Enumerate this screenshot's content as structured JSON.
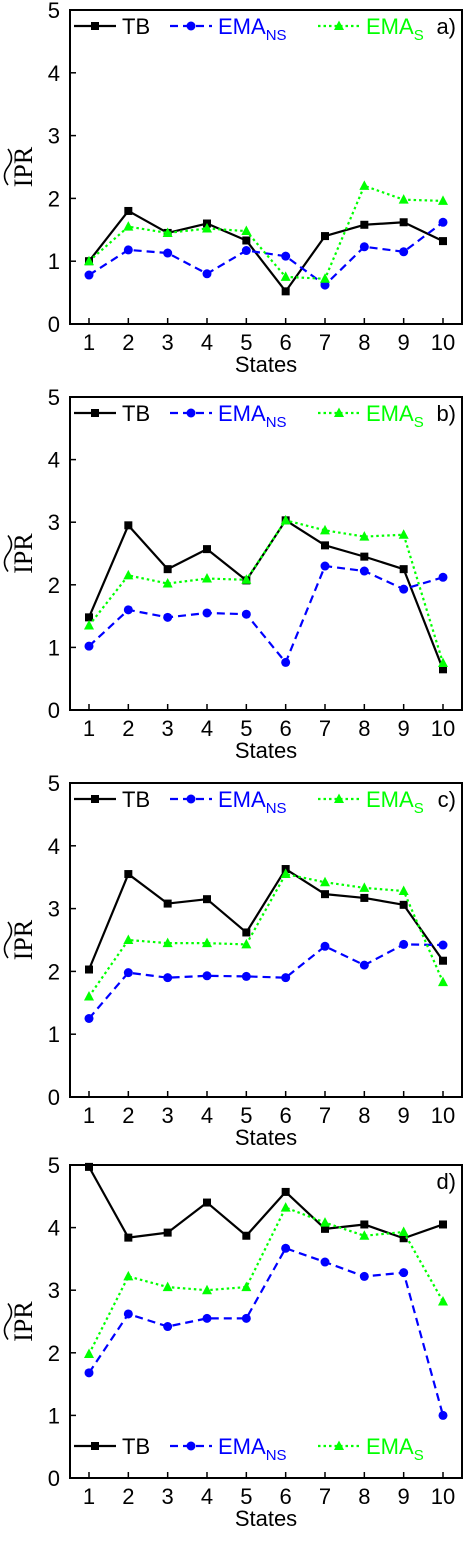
{
  "chart_data": [
    {
      "type": "line",
      "panel_label": "a)",
      "xlabel": "States",
      "ylabel": "IPR",
      "categories": [
        "1",
        "2",
        "3",
        "4",
        "5",
        "6",
        "7",
        "8",
        "9",
        "10"
      ],
      "ylim": [
        0,
        5
      ],
      "yticks": [
        "0",
        "1",
        "2",
        "3",
        "4",
        "5"
      ],
      "legend_position": "top",
      "series": [
        {
          "name": "TB",
          "color": "#000000",
          "marker": "square",
          "dash": "solid",
          "values": [
            1.0,
            1.8,
            1.45,
            1.6,
            1.33,
            0.52,
            1.4,
            1.58,
            1.62,
            1.32
          ]
        },
        {
          "name": "EMA_NS",
          "color": "#0000ff",
          "marker": "circle",
          "dash": "dashed",
          "values": [
            0.78,
            1.18,
            1.13,
            0.8,
            1.17,
            1.08,
            0.62,
            1.23,
            1.15,
            1.62
          ]
        },
        {
          "name": "EMA_S",
          "color": "#00ff00",
          "marker": "triangle",
          "dash": "dotted",
          "values": [
            1.0,
            1.55,
            1.45,
            1.52,
            1.48,
            0.75,
            0.72,
            2.2,
            1.98,
            1.96
          ]
        }
      ]
    },
    {
      "type": "line",
      "panel_label": "b)",
      "xlabel": "States",
      "ylabel": "IPR",
      "categories": [
        "1",
        "2",
        "3",
        "4",
        "5",
        "6",
        "7",
        "8",
        "9",
        "10"
      ],
      "ylim": [
        0,
        5
      ],
      "yticks": [
        "0",
        "1",
        "2",
        "3",
        "4",
        "5"
      ],
      "legend_position": "top",
      "series": [
        {
          "name": "TB",
          "color": "#000000",
          "marker": "square",
          "dash": "solid",
          "values": [
            1.48,
            2.95,
            2.25,
            2.57,
            2.07,
            3.03,
            2.63,
            2.45,
            2.25,
            0.65
          ]
        },
        {
          "name": "EMA_NS",
          "color": "#0000ff",
          "marker": "circle",
          "dash": "dashed",
          "values": [
            1.02,
            1.6,
            1.48,
            1.55,
            1.53,
            0.76,
            2.3,
            2.22,
            1.93,
            2.12
          ]
        },
        {
          "name": "EMA_S",
          "color": "#00ff00",
          "marker": "triangle",
          "dash": "dotted",
          "values": [
            1.35,
            2.15,
            2.02,
            2.1,
            2.08,
            3.03,
            2.87,
            2.77,
            2.8,
            0.75
          ]
        }
      ]
    },
    {
      "type": "line",
      "panel_label": "c)",
      "xlabel": "States",
      "ylabel": "IPR",
      "categories": [
        "1",
        "2",
        "3",
        "4",
        "5",
        "6",
        "7",
        "8",
        "9",
        "10"
      ],
      "ylim": [
        0,
        5
      ],
      "yticks": [
        "0",
        "1",
        "2",
        "3",
        "4",
        "5"
      ],
      "legend_position": "top",
      "series": [
        {
          "name": "TB",
          "color": "#000000",
          "marker": "square",
          "dash": "solid",
          "values": [
            2.03,
            3.55,
            3.08,
            3.15,
            2.62,
            3.63,
            3.23,
            3.17,
            3.06,
            2.17
          ]
        },
        {
          "name": "EMA_NS",
          "color": "#0000ff",
          "marker": "circle",
          "dash": "dashed",
          "values": [
            1.25,
            1.98,
            1.9,
            1.93,
            1.92,
            1.9,
            2.4,
            2.1,
            2.43,
            2.42
          ]
        },
        {
          "name": "EMA_S",
          "color": "#00ff00",
          "marker": "triangle",
          "dash": "dotted",
          "values": [
            1.6,
            2.5,
            2.45,
            2.45,
            2.43,
            3.55,
            3.42,
            3.33,
            3.28,
            1.83
          ]
        }
      ]
    },
    {
      "type": "line",
      "panel_label": "d)",
      "xlabel": "States",
      "ylabel": "IPR",
      "categories": [
        "1",
        "2",
        "3",
        "4",
        "5",
        "6",
        "7",
        "8",
        "9",
        "10"
      ],
      "ylim": [
        0,
        5
      ],
      "yticks": [
        "0",
        "1",
        "2",
        "3",
        "4",
        "5"
      ],
      "legend_position": "bottom",
      "series": [
        {
          "name": "TB",
          "color": "#000000",
          "marker": "square",
          "dash": "solid",
          "values": [
            4.97,
            3.84,
            3.92,
            4.4,
            3.87,
            4.57,
            3.98,
            4.05,
            3.83,
            4.05
          ]
        },
        {
          "name": "EMA_NS",
          "color": "#0000ff",
          "marker": "circle",
          "dash": "dashed",
          "values": [
            1.68,
            2.62,
            2.42,
            2.55,
            2.55,
            3.67,
            3.45,
            3.22,
            3.28,
            1.0
          ]
        },
        {
          "name": "EMA_S",
          "color": "#00ff00",
          "marker": "triangle",
          "dash": "dotted",
          "values": [
            1.98,
            3.22,
            3.05,
            3.0,
            3.05,
            4.32,
            4.08,
            3.87,
            3.93,
            2.82
          ]
        }
      ]
    }
  ],
  "legend_text": {
    "tb": "TB",
    "ema_base": "EMA",
    "ns_sub": "NS",
    "s_sub": "S"
  }
}
